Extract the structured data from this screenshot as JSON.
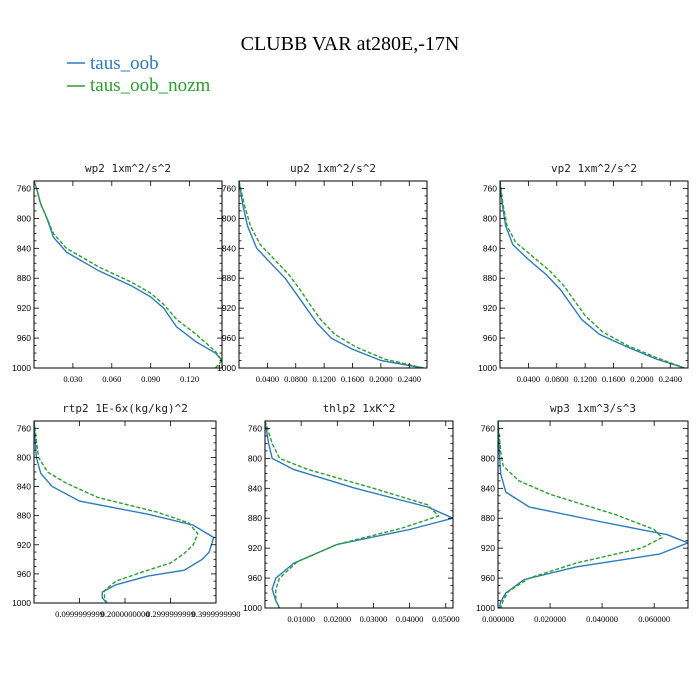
{
  "figure": {
    "title": "CLUBB VAR at280E,-17N",
    "legend": [
      {
        "name": "taus_oob",
        "color": "#2c7bbf"
      },
      {
        "name": "taus_oob_nozm",
        "color": "#2ca02c"
      }
    ]
  },
  "chart_data": [
    {
      "type": "line",
      "title": "wp2   1xm^2/s^2",
      "ylim": [
        1000,
        750
      ],
      "yticks": [
        "760",
        "800",
        "840",
        "880",
        "920",
        "960",
        "1000"
      ],
      "yticks_values": [
        760,
        800,
        840,
        880,
        920,
        960,
        1000
      ],
      "xlim": [
        0,
        0.145
      ],
      "xticks": [
        "0.030",
        "0.060",
        "0.090",
        "0.120"
      ],
      "xticks_values": [
        0.03,
        0.06,
        0.09,
        0.12
      ],
      "series": [
        {
          "name": "taus_oob",
          "x": [
            0,
            0.002,
            0.005,
            0.01,
            0.015,
            0.025,
            0.05,
            0.075,
            0.09,
            0.1,
            0.11,
            0.125,
            0.14,
            0.145,
            0.15
          ],
          "y": [
            750,
            760,
            780,
            800,
            825,
            845,
            870,
            890,
            905,
            920,
            945,
            965,
            980,
            990,
            1000
          ]
        },
        {
          "name": "taus_oob_nozm",
          "x": [
            0,
            0.002,
            0.005,
            0.01,
            0.015,
            0.025,
            0.05,
            0.075,
            0.09,
            0.1,
            0.11,
            0.125,
            0.14,
            0.145,
            0.14
          ],
          "y": [
            750,
            760,
            780,
            800,
            820,
            840,
            865,
            885,
            900,
            915,
            935,
            955,
            978,
            990,
            1000
          ]
        }
      ]
    },
    {
      "type": "line",
      "title": "up2   1xm^2/s^2",
      "ylim": [
        1000,
        750
      ],
      "yticks": [
        "760",
        "800",
        "840",
        "880",
        "920",
        "960",
        "1000"
      ],
      "yticks_values": [
        760,
        800,
        840,
        880,
        920,
        960,
        1000
      ],
      "xlim": [
        0,
        0.265
      ],
      "xticks": [
        "0.0400",
        "0.0800",
        "0.1200",
        "0.1600",
        "0.2000",
        "0.2400"
      ],
      "xticks_values": [
        0.04,
        0.08,
        0.12,
        0.16,
        0.2,
        0.24
      ],
      "series": [
        {
          "name": "taus_oob",
          "x": [
            0,
            0.005,
            0.012,
            0.025,
            0.045,
            0.065,
            0.08,
            0.095,
            0.11,
            0.13,
            0.16,
            0.2,
            0.26
          ],
          "y": [
            750,
            780,
            810,
            840,
            860,
            880,
            900,
            920,
            940,
            960,
            975,
            990,
            1000
          ]
        },
        {
          "name": "taus_oob_nozm",
          "x": [
            0,
            0.007,
            0.016,
            0.03,
            0.05,
            0.07,
            0.086,
            0.1,
            0.115,
            0.135,
            0.165,
            0.205,
            0.26
          ],
          "y": [
            750,
            780,
            810,
            835,
            855,
            875,
            895,
            915,
            935,
            955,
            972,
            988,
            1000
          ]
        }
      ]
    },
    {
      "type": "line",
      "title": "vp2   1xm^2/s^2",
      "ylim": [
        1000,
        750
      ],
      "yticks": [
        "760",
        "800",
        "840",
        "880",
        "920",
        "960",
        "1000"
      ],
      "yticks_values": [
        760,
        800,
        840,
        880,
        920,
        960,
        1000
      ],
      "xlim": [
        0,
        0.265
      ],
      "xticks": [
        "0.0400",
        "0.0800",
        "0.1200",
        "0.1600",
        "0.2000",
        "0.2400"
      ],
      "xticks_values": [
        0.04,
        0.08,
        0.12,
        0.16,
        0.2,
        0.24
      ],
      "series": [
        {
          "name": "taus_oob",
          "x": [
            0,
            0.003,
            0.008,
            0.018,
            0.04,
            0.065,
            0.085,
            0.1,
            0.115,
            0.14,
            0.18,
            0.22,
            0.26
          ],
          "y": [
            750,
            780,
            810,
            835,
            855,
            875,
            895,
            915,
            935,
            955,
            972,
            988,
            1000
          ]
        },
        {
          "name": "taus_oob_nozm",
          "x": [
            0,
            0.004,
            0.01,
            0.022,
            0.045,
            0.07,
            0.09,
            0.105,
            0.12,
            0.145,
            0.18,
            0.22,
            0.26
          ],
          "y": [
            750,
            780,
            810,
            832,
            850,
            870,
            890,
            910,
            930,
            952,
            970,
            986,
            1000
          ]
        }
      ]
    },
    {
      "type": "line",
      "title": "rtp2   1E-6x(kg/kg)^2",
      "ylim": [
        1000,
        750
      ],
      "yticks": [
        "760",
        "800",
        "840",
        "880",
        "920",
        "960",
        "1000"
      ],
      "yticks_values": [
        760,
        800,
        840,
        880,
        920,
        960,
        1000
      ],
      "xlim": [
        0,
        0.4
      ],
      "xticks": [
        "0.0999999999",
        "0.2000000000",
        "0.2999999999",
        "0.3999999990"
      ],
      "xticks_values": [
        0.1,
        0.2,
        0.3,
        0.4
      ],
      "series": [
        {
          "name": "taus_oob",
          "x": [
            0,
            0.005,
            0.015,
            0.04,
            0.1,
            0.25,
            0.35,
            0.395,
            0.385,
            0.37,
            0.33,
            0.25,
            0.18,
            0.15,
            0.15,
            0.16
          ],
          "y": [
            750,
            800,
            822,
            840,
            860,
            878,
            893,
            910,
            930,
            940,
            955,
            963,
            975,
            985,
            993,
            1000
          ]
        },
        {
          "name": "taus_oob_nozm",
          "x": [
            0,
            0.01,
            0.03,
            0.07,
            0.14,
            0.27,
            0.34,
            0.36,
            0.35,
            0.33,
            0.3,
            0.24,
            0.18,
            0.155,
            0.155,
            0.16
          ],
          "y": [
            750,
            800,
            820,
            835,
            855,
            875,
            890,
            905,
            920,
            932,
            945,
            957,
            970,
            983,
            993,
            1000
          ]
        }
      ]
    },
    {
      "type": "line",
      "title": "thlp2   1xK^2",
      "ylim": [
        1000,
        750
      ],
      "yticks": [
        "760",
        "800",
        "840",
        "880",
        "920",
        "960",
        "1000"
      ],
      "yticks_values": [
        760,
        800,
        840,
        880,
        920,
        960,
        1000
      ],
      "xlim": [
        0,
        0.052
      ],
      "xticks": [
        "0.01000",
        "0.02000",
        "0.03000",
        "0.04000",
        "0.05000"
      ],
      "xticks_values": [
        0.01,
        0.02,
        0.03,
        0.04,
        0.05
      ],
      "series": [
        {
          "name": "taus_oob",
          "x": [
            0,
            0.001,
            0.002,
            0.008,
            0.025,
            0.045,
            0.052,
            0.04,
            0.02,
            0.008,
            0.003,
            0.002,
            0.003,
            0.004
          ],
          "y": [
            750,
            780,
            800,
            815,
            840,
            865,
            880,
            895,
            915,
            940,
            960,
            975,
            990,
            1000
          ]
        },
        {
          "name": "taus_oob_nozm",
          "x": [
            0,
            0.002,
            0.004,
            0.012,
            0.03,
            0.045,
            0.048,
            0.038,
            0.02,
            0.009,
            0.004,
            0.003,
            0.003,
            0.004
          ],
          "y": [
            750,
            780,
            800,
            815,
            840,
            862,
            877,
            893,
            915,
            938,
            960,
            975,
            990,
            1000
          ]
        }
      ]
    },
    {
      "type": "line",
      "title": "wp3   1xm^3/s^3",
      "ylim": [
        1000,
        750
      ],
      "yticks": [
        "760",
        "800",
        "840",
        "880",
        "920",
        "960",
        "1000"
      ],
      "yticks_values": [
        760,
        800,
        840,
        880,
        920,
        960,
        1000
      ],
      "xlim": [
        0,
        0.073
      ],
      "xticks": [
        "0.000000",
        "0.020000",
        "0.040000",
        "0.060000"
      ],
      "xticks_values": [
        0,
        0.02,
        0.04,
        0.06
      ],
      "series": [
        {
          "name": "taus_oob",
          "x": [
            0,
            0.0005,
            0.001,
            0.003,
            0.012,
            0.04,
            0.065,
            0.073,
            0.062,
            0.03,
            0.01,
            0.003,
            0.001,
            0.0005
          ],
          "y": [
            750,
            790,
            820,
            845,
            865,
            885,
            902,
            913,
            928,
            945,
            962,
            980,
            992,
            1000
          ]
        },
        {
          "name": "taus_oob_nozm",
          "x": [
            0,
            0.001,
            0.002,
            0.008,
            0.02,
            0.045,
            0.06,
            0.063,
            0.055,
            0.03,
            0.012,
            0.004,
            0.002,
            0.001
          ],
          "y": [
            750,
            790,
            810,
            830,
            848,
            875,
            895,
            906,
            920,
            940,
            960,
            978,
            990,
            1000
          ]
        }
      ]
    }
  ]
}
